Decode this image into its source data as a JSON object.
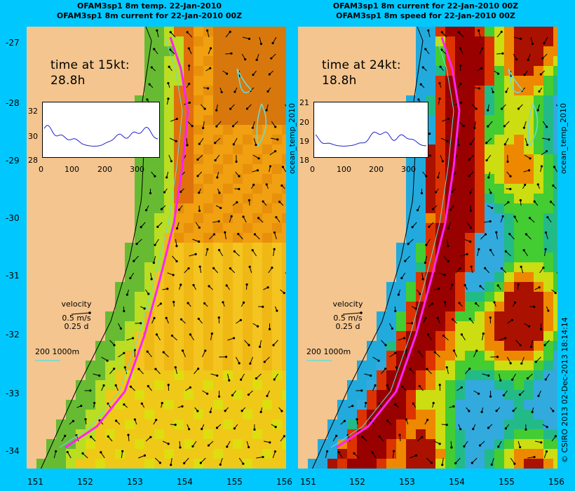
{
  "left_panel": {
    "title_line1": "OFAM3sp1 8m temp. 22-Jan-2010",
    "title_line2": "OFAM3sp1 8m current for 22-Jan-2010 00Z",
    "time_label": "time at 15kt:",
    "time_value": "28.8h",
    "inset_y_ticks": [
      "32",
      "30",
      "28"
    ],
    "inset_x_ticks": [
      "0",
      "100",
      "200",
      "300"
    ],
    "side_label": "ocean_temp_2010"
  },
  "right_panel": {
    "title_line1": "OFAM3sp1 8m current for 22-Jan-2010 00Z",
    "title_line2": "OFAM3sp1 8m speed for 22-Jan-2010 00Z",
    "time_label": "time at 24kt:",
    "time_value": "18.8h",
    "inset_y_ticks": [
      "21",
      "20",
      "19",
      "18"
    ],
    "inset_x_ticks": [
      "0",
      "100",
      "200",
      "300"
    ],
    "side_label": "ocean_temp_2010"
  },
  "legend": {
    "velocity": "velocity",
    "speed": "0.5 m/s",
    "duration": "0.25 d",
    "bathy": "200  1000m"
  },
  "axes": {
    "lat_ticks": [
      "-27",
      "-28",
      "-29",
      "-30",
      "-31",
      "-32",
      "-33",
      "-34"
    ],
    "lon_ticks_left": [
      "151",
      "152",
      "153",
      "154",
      "155",
      "156"
    ],
    "lon_ticks_right": [
      "151",
      "152",
      "153",
      "154",
      "155",
      "156"
    ]
  },
  "credit": "© CSIRO 2013   02-Dec-2013 18:14:14",
  "colors": {
    "background": "#00c8ff",
    "land": "#f4c58f",
    "track": "#ff22ff",
    "contour": "#66dddd"
  }
}
